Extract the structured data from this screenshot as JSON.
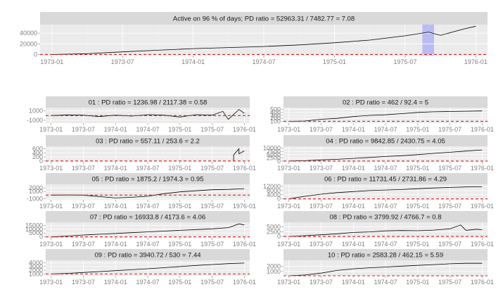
{
  "chart_data": [
    {
      "type": "line",
      "title": "Active on 96 % of days; PD ratio =  52963.31 / 7482.77 = 7.08",
      "x_ticks": [
        "1973-01",
        "1973-07",
        "1974-01",
        "1974-07",
        "1975-01",
        "1975-07",
        "1976-01"
      ],
      "x_range": [
        "1972-12",
        "1976-02"
      ],
      "y_ticks": [
        0,
        20000,
        40000
      ],
      "y_range": [
        -2000,
        56000
      ],
      "reference_line_y": 0,
      "highlight_range": [
        "1975-08-15",
        "1975-09-15"
      ],
      "series": [
        {
          "x": [
            "1973-01",
            "1973-04",
            "1973-07",
            "1973-10",
            "1974-01",
            "1974-04",
            "1974-07",
            "1974-10",
            "1975-01",
            "1975-04",
            "1975-07",
            "1975-09",
            "1975-10",
            "1975-12",
            "1976-01"
          ],
          "y": [
            0,
            1500,
            5000,
            8000,
            11000,
            13000,
            15000,
            18000,
            22000,
            27000,
            35000,
            42000,
            36000,
            48000,
            53000
          ]
        }
      ]
    },
    {
      "type": "line",
      "title": "01 : PD ratio =  1236.98 / 2117.38 = 0.58",
      "x_ticks": [
        "1973-01",
        "1973-07",
        "1974-01",
        "1974-07",
        "1975-01",
        "1975-07",
        "1976-01"
      ],
      "x_range": [
        "1972-12",
        "1976-02"
      ],
      "y_ticks": [
        -1000,
        1000
      ],
      "y_range": [
        -1600,
        1700
      ],
      "reference_line_y": 0,
      "series": [
        {
          "x": [
            "1973-01",
            "1973-04",
            "1973-07",
            "1973-10",
            "1974-01",
            "1974-04",
            "1974-07",
            "1974-10",
            "1975-01",
            "1975-04",
            "1975-07",
            "1975-09",
            "1975-10",
            "1975-12",
            "1976-01"
          ],
          "y": [
            0,
            150,
            100,
            -200,
            100,
            -100,
            200,
            100,
            -300,
            200,
            100,
            900,
            -800,
            1300,
            500
          ]
        }
      ]
    },
    {
      "type": "line",
      "title": "02 : PD ratio =  462 / 92.4 = 5",
      "x_ticks": [
        "1973-01",
        "1973-07",
        "1974-01",
        "1974-07",
        "1975-01",
        "1975-07",
        "1976-01"
      ],
      "x_range": [
        "1972-12",
        "1976-02"
      ],
      "y_ticks": [
        100,
        200,
        300,
        400,
        500
      ],
      "y_range": [
        40,
        560
      ],
      "reference_line_y": 100,
      "series": [
        {
          "x": [
            "1973-01",
            "1973-04",
            "1973-07",
            "1973-10",
            "1974-01",
            "1974-04",
            "1974-07",
            "1974-10",
            "1975-01",
            "1975-04",
            "1975-07",
            "1975-10",
            "1976-01"
          ],
          "y": [
            100,
            110,
            170,
            200,
            260,
            300,
            320,
            360,
            400,
            420,
            430,
            440,
            450
          ]
        }
      ]
    },
    {
      "type": "line",
      "title": "03 : PD ratio =  557.11 / 253.6 = 2.2",
      "x_ticks": [
        "1973-01",
        "1973-07",
        "1974-01",
        "1974-07",
        "1975-01",
        "1975-07",
        "1976-01"
      ],
      "x_range": [
        "1972-12",
        "1976-02"
      ],
      "y_ticks": [
        0,
        200,
        400,
        600
      ],
      "y_range": [
        -40,
        720
      ],
      "reference_line_y": 0,
      "series": [
        {
          "x": [
            "1975-11",
            "1975-11",
            "1975-12",
            "1975-12",
            "1976-01"
          ],
          "y": [
            0,
            300,
            600,
            350,
            500
          ]
        }
      ]
    },
    {
      "type": "line",
      "title": "04 : PD ratio =  9842.85 / 2430.75 = 4.05",
      "x_ticks": [
        "1973-01",
        "1973-07",
        "1974-01",
        "1974-07",
        "1975-01",
        "1975-07",
        "1976-01"
      ],
      "x_range": [
        "1972-12",
        "1976-02"
      ],
      "y_ticks": [
        0,
        2500,
        5000,
        7500,
        10000
      ],
      "y_range": [
        -600,
        11500
      ],
      "reference_line_y": 0,
      "series": [
        {
          "x": [
            "1973-01",
            "1973-04",
            "1973-07",
            "1973-10",
            "1974-01",
            "1974-04",
            "1974-07",
            "1974-10",
            "1975-01",
            "1975-04",
            "1975-07",
            "1975-10",
            "1976-01"
          ],
          "y": [
            0,
            300,
            900,
            1400,
            2100,
            2800,
            3600,
            4200,
            5000,
            6000,
            6900,
            7800,
            8700
          ]
        }
      ]
    },
    {
      "type": "line",
      "title": "05 : PD ratio =  1875.2 / 1974.3 = 0.95",
      "x_ticks": [
        "1973-01",
        "1973-07",
        "1974-01",
        "1974-07",
        "1975-01",
        "1975-07",
        "1976-01"
      ],
      "x_range": [
        "1972-12",
        "1976-02"
      ],
      "y_ticks": [
        -1000,
        1000,
        2000
      ],
      "y_range": [
        -1300,
        3000
      ],
      "reference_line_y": 0,
      "series": [
        {
          "x": [
            "1973-01",
            "1973-04",
            "1973-07",
            "1973-10",
            "1974-01",
            "1974-04",
            "1974-07",
            "1974-10",
            "1975-01",
            "1975-04",
            "1975-07",
            "1975-10",
            "1976-01"
          ],
          "y": [
            0,
            50,
            0,
            -400,
            -800,
            -600,
            -300,
            400,
            900,
            1200,
            1500,
            1600,
            1800
          ]
        }
      ]
    },
    {
      "type": "line",
      "title": "06 : PD ratio =  11731.45 / 2731.86 = 4.29",
      "x_ticks": [
        "1973-01",
        "1973-07",
        "1974-01",
        "1974-07",
        "1975-01",
        "1975-07",
        "1976-01"
      ],
      "x_range": [
        "1972-12",
        "1976-02"
      ],
      "y_ticks": [
        0,
        4000,
        8000,
        12000
      ],
      "y_range": [
        -900,
        14000
      ],
      "reference_line_y": 0,
      "series": [
        {
          "x": [
            "1973-01",
            "1973-04",
            "1973-07",
            "1973-10",
            "1974-01",
            "1974-04",
            "1974-07",
            "1974-10",
            "1975-01",
            "1975-04",
            "1975-07",
            "1975-10",
            "1976-01"
          ],
          "y": [
            0,
            2500,
            4500,
            6000,
            7000,
            8000,
            8500,
            9000,
            9800,
            10500,
            11000,
            11500,
            11700
          ]
        }
      ]
    },
    {
      "type": "line",
      "title": "07 : PD ratio =  16933.8 / 4173.6 = 4.06",
      "x_ticks": [
        "1973-01",
        "1973-07",
        "1974-01",
        "1974-07",
        "1975-01",
        "1975-07",
        "1976-01"
      ],
      "x_range": [
        "1972-12",
        "1976-02"
      ],
      "y_ticks": [
        0,
        5000,
        10000,
        15000
      ],
      "y_range": [
        -1200,
        19000
      ],
      "reference_line_y": 0,
      "series": [
        {
          "x": [
            "1973-01",
            "1973-04",
            "1973-07",
            "1973-10",
            "1974-01",
            "1974-04",
            "1974-07",
            "1974-10",
            "1975-01",
            "1975-04",
            "1975-07",
            "1975-10",
            "1975-12",
            "1976-01"
          ],
          "y": [
            0,
            1000,
            2500,
            3500,
            4500,
            5500,
            6500,
            7500,
            8500,
            9500,
            10500,
            12000,
            17000,
            15500
          ]
        }
      ]
    },
    {
      "type": "line",
      "title": "08 : PD ratio =  3799.92 / 4766.7 = 0.8",
      "x_ticks": [
        "1973-01",
        "1973-07",
        "1974-01",
        "1974-07",
        "1975-01",
        "1975-07",
        "1976-01"
      ],
      "x_range": [
        "1972-12",
        "1976-02"
      ],
      "y_ticks": [
        0,
        2500,
        5000
      ],
      "y_range": [
        -700,
        7400
      ],
      "reference_line_y": 0,
      "series": [
        {
          "x": [
            "1973-01",
            "1973-04",
            "1973-07",
            "1973-10",
            "1974-01",
            "1974-04",
            "1974-07",
            "1974-10",
            "1975-01",
            "1975-04",
            "1975-07",
            "1975-09",
            "1975-10",
            "1975-12",
            "1976-01"
          ],
          "y": [
            0,
            400,
            900,
            1400,
            2100,
            2400,
            2900,
            3100,
            3000,
            3300,
            4000,
            6000,
            3200,
            3800,
            3500
          ]
        }
      ]
    },
    {
      "type": "line",
      "title": "09 : PD ratio =  3940.72 / 530 = 7.44",
      "x_ticks": [
        "1973-01",
        "1973-07",
        "1974-01",
        "1974-07",
        "1975-01",
        "1975-07",
        "1976-01"
      ],
      "x_range": [
        "1972-12",
        "1976-02"
      ],
      "y_ticks": [
        1000,
        2000,
        3000,
        4000
      ],
      "y_range": [
        500,
        4700
      ],
      "reference_line_y": 1000,
      "series": [
        {
          "x": [
            "1973-01",
            "1973-04",
            "1973-07",
            "1973-10",
            "1974-01",
            "1974-04",
            "1974-07",
            "1974-10",
            "1975-01",
            "1975-04",
            "1975-07",
            "1975-10",
            "1976-01"
          ],
          "y": [
            1000,
            1150,
            1400,
            1650,
            1900,
            2150,
            2400,
            2700,
            3000,
            3300,
            3550,
            3800,
            3950
          ]
        }
      ]
    },
    {
      "type": "line",
      "title": "10 : PD ratio =  2583.28 / 462.15 = 5.59",
      "x_ticks": [
        "1973-01",
        "1973-07",
        "1974-01",
        "1974-07",
        "1975-01",
        "1975-07",
        "1976-01"
      ],
      "x_range": [
        "1972-12",
        "1976-02"
      ],
      "y_ticks": [
        1000,
        2000
      ],
      "y_range": [
        200,
        3100
      ],
      "reference_line_y": 200,
      "series": [
        {
          "x": [
            "1973-01",
            "1973-04",
            "1973-07",
            "1973-10",
            "1974-01",
            "1974-04",
            "1974-07",
            "1974-10",
            "1975-01",
            "1975-04",
            "1975-07",
            "1975-10",
            "1976-01"
          ],
          "y": [
            200,
            350,
            700,
            1200,
            1500,
            1700,
            1850,
            2000,
            2150,
            2300,
            2450,
            2550,
            2550
          ]
        }
      ]
    }
  ]
}
